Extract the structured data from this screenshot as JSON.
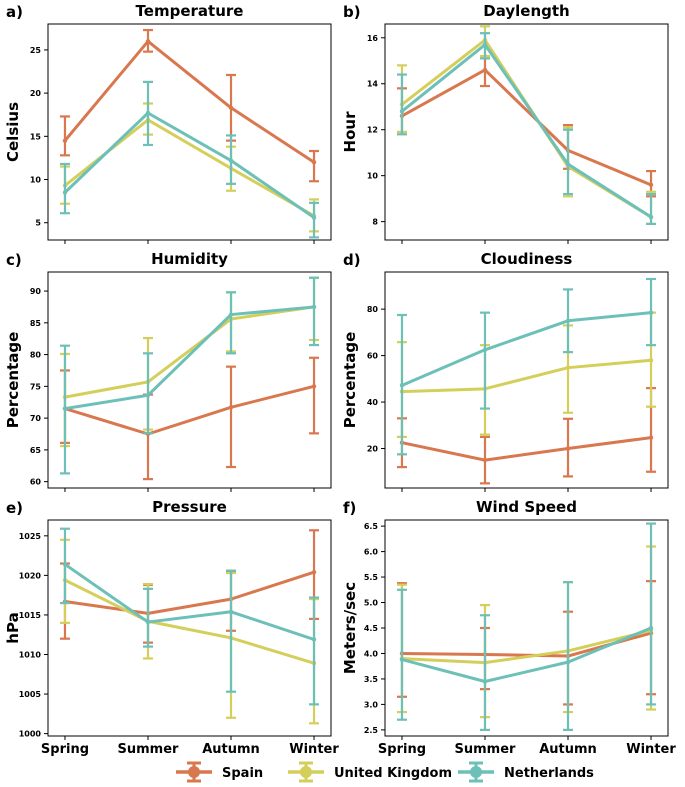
{
  "colors": {
    "spain": "#d9774f",
    "uk": "#d4cf5b",
    "nl": "#6cc0b8"
  },
  "legend": {
    "position": "bottom-center",
    "entries": [
      "Spain",
      "United Kingdom",
      "Netherlands"
    ]
  },
  "chart_data": [
    {
      "panel": "a)",
      "type": "line",
      "title": "Temperature",
      "ylabel": "Celsius",
      "categories": [
        "Spring",
        "Summer",
        "Autumn",
        "Winter"
      ],
      "show_xticklabels": false,
      "ylim": [
        3,
        28
      ],
      "yticks": [
        5,
        10,
        15,
        20,
        25
      ],
      "series": [
        {
          "name": "Spain",
          "values": [
            14.5,
            26.0,
            18.3,
            12.0
          ],
          "err": [
            [
              12.8,
              17.3
            ],
            [
              24.8,
              27.3
            ],
            [
              14.5,
              22.1
            ],
            [
              9.8,
              13.3
            ]
          ]
        },
        {
          "name": "United Kingdom",
          "values": [
            9.3,
            16.9,
            11.3,
            5.8
          ],
          "err": [
            [
              7.2,
              11.5
            ],
            [
              15.2,
              18.8
            ],
            [
              8.7,
              13.8
            ],
            [
              4.0,
              7.7
            ]
          ]
        },
        {
          "name": "Netherlands",
          "values": [
            8.5,
            17.7,
            12.2,
            5.6
          ],
          "err": [
            [
              6.1,
              11.8
            ],
            [
              14.0,
              21.3
            ],
            [
              9.5,
              15.1
            ],
            [
              3.3,
              7.3
            ]
          ]
        }
      ]
    },
    {
      "panel": "b)",
      "type": "line",
      "title": "Daylength",
      "ylabel": "Hour",
      "categories": [
        "Spring",
        "Summer",
        "Autumn",
        "Winter"
      ],
      "show_xticklabels": false,
      "ylim": [
        7.2,
        16.6
      ],
      "yticks": [
        8,
        10,
        12,
        14,
        16
      ],
      "series": [
        {
          "name": "Spain",
          "values": [
            12.6,
            14.6,
            11.1,
            9.6
          ],
          "err": [
            [
              11.9,
              13.8
            ],
            [
              13.9,
              15.2
            ],
            [
              10.3,
              12.2
            ],
            [
              9.1,
              10.2
            ]
          ]
        },
        {
          "name": "United Kingdom",
          "values": [
            13.1,
            15.9,
            10.4,
            8.2
          ],
          "err": [
            [
              11.9,
              14.8
            ],
            [
              15.2,
              16.5
            ],
            [
              9.1,
              12.1
            ],
            [
              7.9,
              9.3
            ]
          ]
        },
        {
          "name": "Netherlands",
          "values": [
            12.8,
            15.7,
            10.5,
            8.2
          ],
          "err": [
            [
              11.8,
              14.4
            ],
            [
              15.1,
              16.2
            ],
            [
              9.2,
              12.0
            ],
            [
              7.9,
              9.2
            ]
          ]
        }
      ]
    },
    {
      "panel": "c)",
      "type": "line",
      "title": "Humidity",
      "ylabel": "Percentage",
      "categories": [
        "Spring",
        "Summer",
        "Autumn",
        "Winter"
      ],
      "show_xticklabels": false,
      "ylim": [
        59,
        93
      ],
      "yticks": [
        60,
        65,
        70,
        75,
        80,
        85,
        90
      ],
      "series": [
        {
          "name": "Spain",
          "values": [
            71.5,
            67.5,
            71.7,
            75.0
          ],
          "err": [
            [
              66.1,
              77.5
            ],
            [
              60.4,
              73.7
            ],
            [
              62.3,
              78.1
            ],
            [
              67.6,
              79.5
            ]
          ]
        },
        {
          "name": "United Kingdom",
          "values": [
            73.3,
            75.7,
            85.6,
            87.5
          ],
          "err": [
            [
              65.6,
              80.1
            ],
            [
              68.2,
              82.6
            ],
            [
              80.5,
              89.8
            ],
            [
              82.3,
              92.1
            ]
          ]
        },
        {
          "name": "Netherlands",
          "values": [
            71.5,
            73.6,
            86.3,
            87.5
          ],
          "err": [
            [
              61.3,
              81.4
            ],
            [
              67.6,
              80.2
            ],
            [
              80.2,
              89.8
            ],
            [
              81.5,
              92.1
            ]
          ]
        }
      ]
    },
    {
      "panel": "d)",
      "type": "line",
      "title": "Cloudiness",
      "ylabel": "Percentage",
      "categories": [
        "Spring",
        "Summer",
        "Autumn",
        "Winter"
      ],
      "show_xticklabels": false,
      "ylim": [
        3,
        96
      ],
      "yticks": [
        20,
        40,
        60,
        80
      ],
      "series": [
        {
          "name": "Spain",
          "values": [
            22.5,
            15.0,
            20.0,
            24.7
          ],
          "err": [
            [
              12.0,
              33.0
            ],
            [
              5.0,
              25.0
            ],
            [
              8.0,
              32.8
            ],
            [
              10.0,
              46.0
            ]
          ]
        },
        {
          "name": "United Kingdom",
          "values": [
            44.5,
            45.7,
            54.8,
            58.0
          ],
          "err": [
            [
              25.0,
              65.8
            ],
            [
              26.0,
              64.5
            ],
            [
              35.4,
              73.0
            ],
            [
              38.0,
              78.5
            ]
          ]
        },
        {
          "name": "Netherlands",
          "values": [
            47.2,
            62.5,
            75.0,
            78.5
          ],
          "err": [
            [
              17.5,
              77.5
            ],
            [
              37.2,
              78.5
            ],
            [
              61.5,
              88.5
            ],
            [
              64.5,
              93.0
            ]
          ]
        }
      ]
    },
    {
      "panel": "e)",
      "type": "line",
      "title": "Pressure",
      "ylabel": "hPa",
      "categories": [
        "Spring",
        "Summer",
        "Autumn",
        "Winter"
      ],
      "show_xticklabels": true,
      "ylim": [
        999.7,
        1027
      ],
      "yticks": [
        1000,
        1005,
        1010,
        1015,
        1020,
        1025
      ],
      "series": [
        {
          "name": "Spain",
          "values": [
            1016.7,
            1015.2,
            1017.0,
            1020.4
          ],
          "err": [
            [
              1012.0,
              1021.5
            ],
            [
              1011.5,
              1018.8
            ],
            [
              1013.0,
              1020.5
            ],
            [
              1014.5,
              1025.7
            ]
          ]
        },
        {
          "name": "United Kingdom",
          "values": [
            1019.4,
            1014.2,
            1012.1,
            1008.9
          ],
          "err": [
            [
              1014.0,
              1024.5
            ],
            [
              1009.5,
              1018.9
            ],
            [
              1002.0,
              1020.3
            ],
            [
              1001.3,
              1017.0
            ]
          ]
        },
        {
          "name": "Netherlands",
          "values": [
            1021.4,
            1014.1,
            1015.4,
            1011.9
          ],
          "err": [
            [
              1016.5,
              1025.9
            ],
            [
              1011.0,
              1018.3
            ],
            [
              1005.3,
              1020.6
            ],
            [
              1003.7,
              1017.2
            ]
          ]
        }
      ]
    },
    {
      "panel": "f)",
      "type": "line",
      "title": "Wind Speed",
      "ylabel": "Meters/sec",
      "categories": [
        "Spring",
        "Summer",
        "Autumn",
        "Winter"
      ],
      "show_xticklabels": true,
      "ylim": [
        2.38,
        6.62
      ],
      "yticks": [
        2.5,
        3.0,
        3.5,
        4.0,
        4.5,
        5.0,
        5.5,
        6.0,
        6.5
      ],
      "series": [
        {
          "name": "Spain",
          "values": [
            4.0,
            3.98,
            3.95,
            4.4
          ],
          "err": [
            [
              3.15,
              5.38
            ],
            [
              3.3,
              4.5
            ],
            [
              3.0,
              4.82
            ],
            [
              3.2,
              5.42
            ]
          ]
        },
        {
          "name": "United Kingdom",
          "values": [
            3.9,
            3.82,
            4.05,
            4.45
          ],
          "err": [
            [
              2.85,
              5.35
            ],
            [
              2.75,
              4.95
            ],
            [
              2.85,
              5.4
            ],
            [
              2.9,
              6.1
            ]
          ]
        },
        {
          "name": "Netherlands",
          "values": [
            3.88,
            3.45,
            3.83,
            4.5
          ],
          "err": [
            [
              2.7,
              5.25
            ],
            [
              2.5,
              4.75
            ],
            [
              2.5,
              5.4
            ],
            [
              3.0,
              6.55
            ]
          ]
        }
      ]
    }
  ]
}
